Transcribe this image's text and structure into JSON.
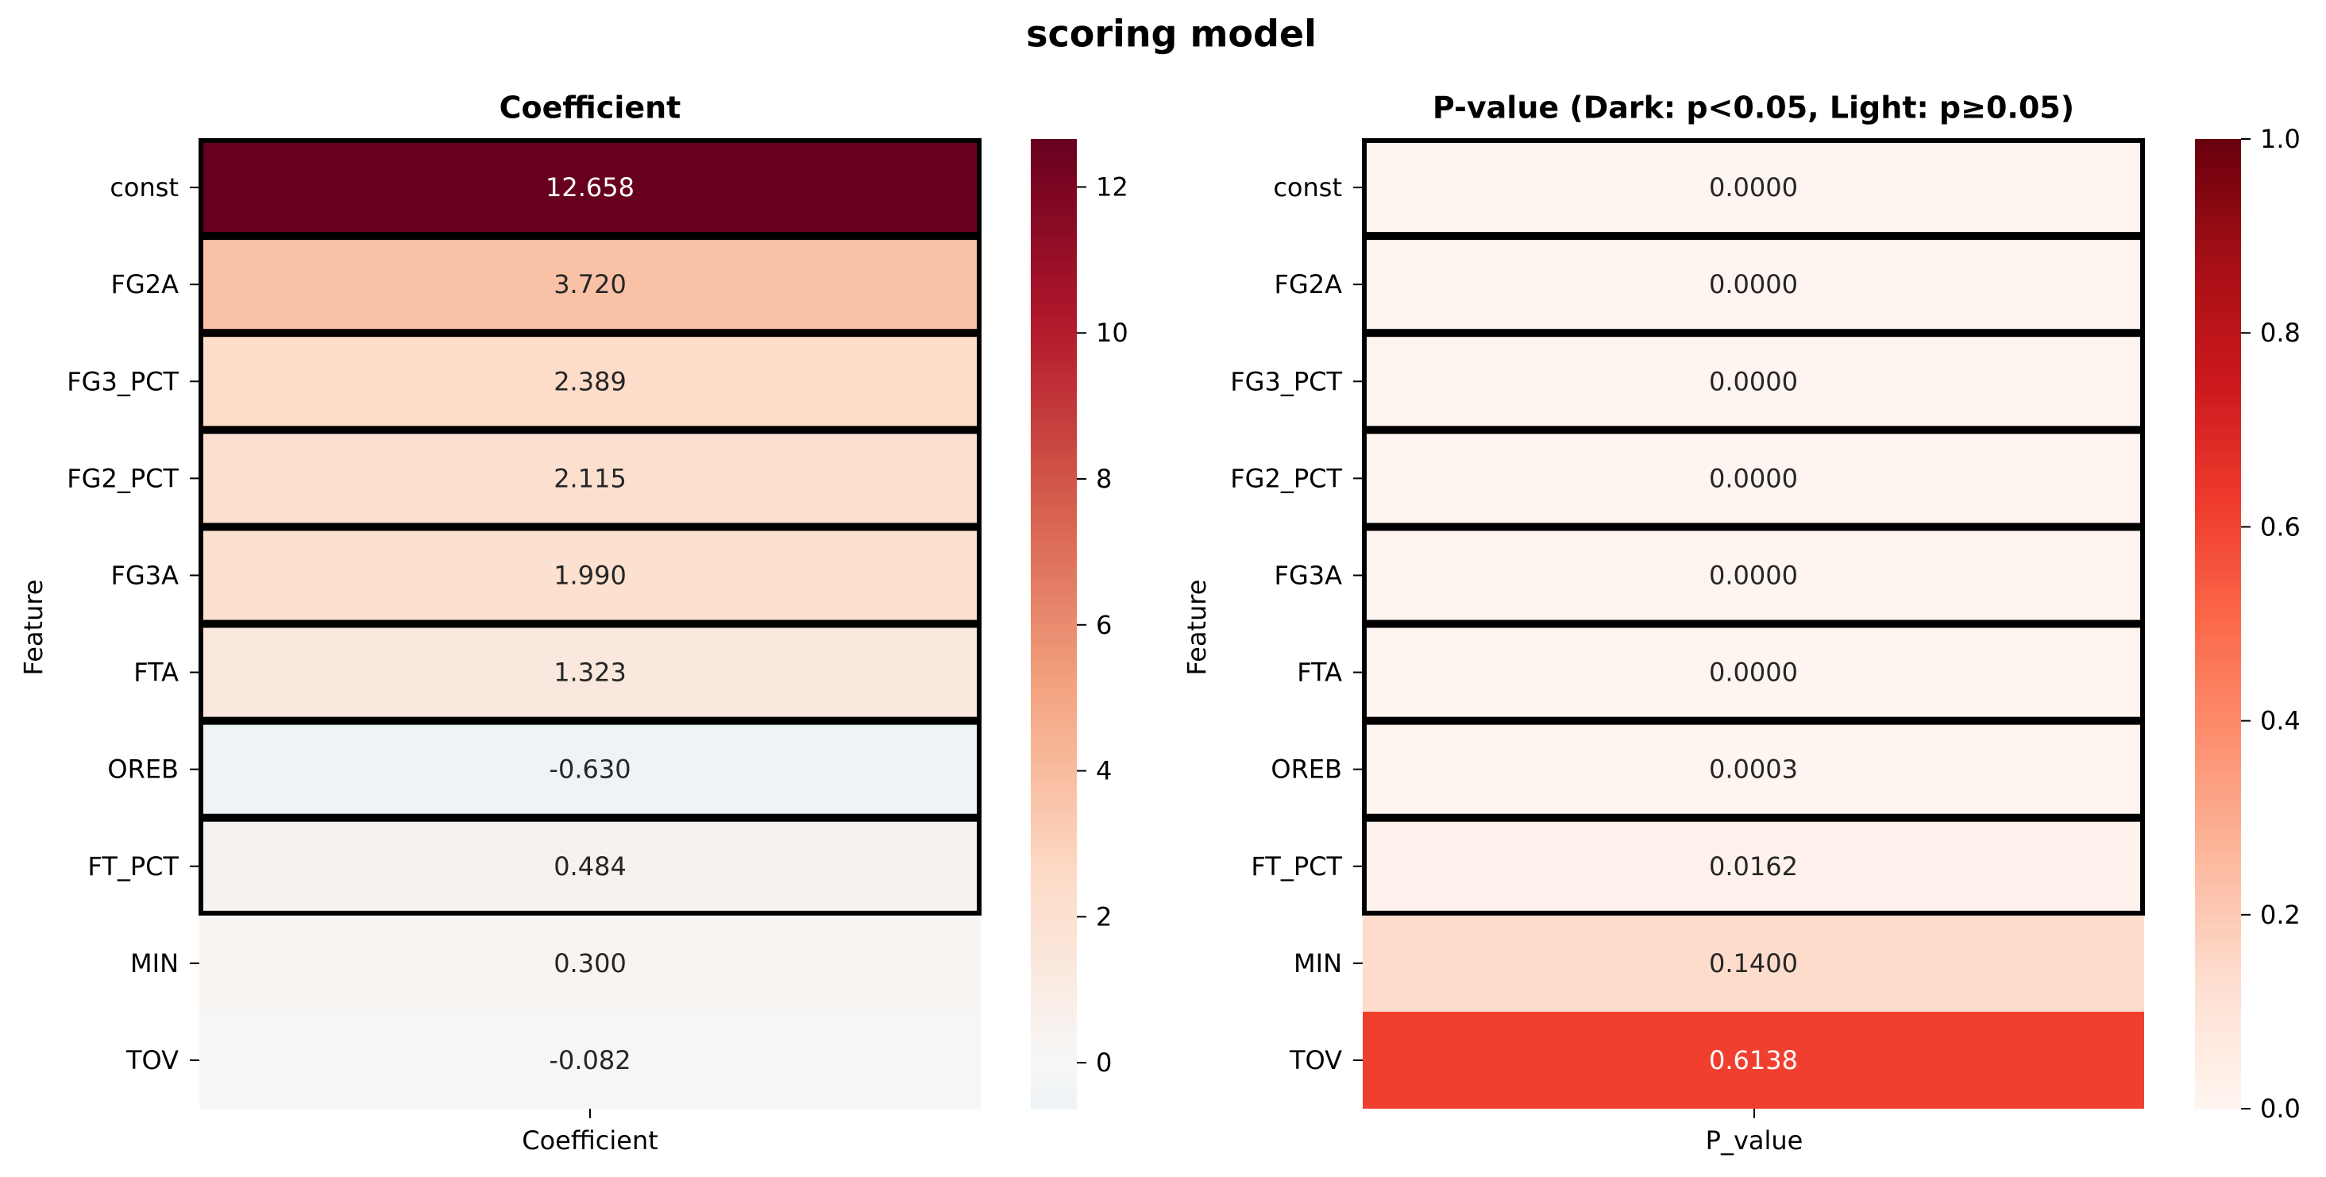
{
  "chart_data": {
    "type": "heatmap",
    "title": "scoring model",
    "features": [
      "const",
      "FG2A",
      "FG3_PCT",
      "FG2_PCT",
      "FG3A",
      "FTA",
      "OREB",
      "FT_PCT",
      "MIN",
      "TOV"
    ],
    "significant": [
      true,
      true,
      true,
      true,
      true,
      true,
      true,
      true,
      false,
      false
    ],
    "panels": [
      {
        "title": "Coefficient",
        "xlabel": "Coefficient",
        "ylabel": "Feature",
        "column": "Coefficient",
        "values": [
          12.658,
          3.72,
          2.389,
          2.115,
          1.99,
          1.323,
          -0.63,
          0.484,
          0.3,
          -0.082
        ],
        "labels": [
          "12.658",
          "3.720",
          "2.389",
          "2.115",
          "1.990",
          "1.323",
          "-0.630",
          "0.484",
          "0.300",
          "-0.082"
        ],
        "colormap": "RdBu_r",
        "vmin": -0.63,
        "vmax": 12.658,
        "center": 0,
        "colorbar_ticks": [
          "0",
          "2",
          "4",
          "6",
          "8",
          "10",
          "12"
        ]
      },
      {
        "title": "P-value (Dark: p<0.05, Light: p≥0.05)",
        "xlabel": "P_value",
        "ylabel": "Feature",
        "column": "P_value",
        "values": [
          0.0,
          0.0,
          0.0,
          0.0,
          0.0,
          0.0,
          0.0003,
          0.0162,
          0.14,
          0.6138
        ],
        "labels": [
          "0.0000",
          "0.0000",
          "0.0000",
          "0.0000",
          "0.0000",
          "0.0000",
          "0.0003",
          "0.0162",
          "0.1400",
          "0.6138"
        ],
        "colormap": "Reds",
        "vmin": 0.0,
        "vmax": 1.0,
        "colorbar_ticks": [
          "0.0",
          "0.2",
          "0.4",
          "0.6",
          "0.8",
          "1.0"
        ]
      }
    ]
  }
}
